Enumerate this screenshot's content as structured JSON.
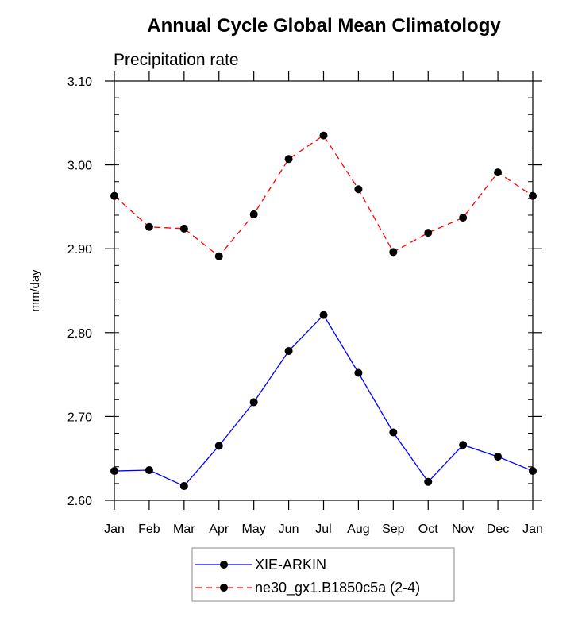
{
  "chart_data": {
    "type": "line",
    "title": "Annual Cycle Global Mean Climatology",
    "subtitle": "Precipitation rate",
    "xlabel": "",
    "ylabel": "mm/day",
    "categories": [
      "Jan",
      "Feb",
      "Mar",
      "Apr",
      "May",
      "Jun",
      "Jul",
      "Aug",
      "Sep",
      "Oct",
      "Nov",
      "Dec",
      "Jan"
    ],
    "ylim": [
      2.6,
      3.1
    ],
    "yticks": [
      2.6,
      2.7,
      2.8,
      2.9,
      3.0,
      3.1
    ],
    "ytick_labels": [
      "2.60",
      "2.70",
      "2.80",
      "2.90",
      "3.00",
      "3.10"
    ],
    "yminor_step": 0.02,
    "grid": false,
    "legend_position": "bottom-center",
    "series": [
      {
        "name": "XIE-ARKIN",
        "color": "#0000ff",
        "dash": "solid",
        "marker": "filled-circle",
        "values": [
          2.635,
          2.636,
          2.617,
          2.665,
          2.717,
          2.778,
          2.821,
          2.752,
          2.681,
          2.622,
          2.666,
          2.652,
          2.635
        ]
      },
      {
        "name": "ne30_gx1.B1850c5a (2-4)",
        "color": "#ff0000",
        "dash": "dashed",
        "marker": "filled-circle",
        "values": [
          2.963,
          2.926,
          2.924,
          2.891,
          2.941,
          3.007,
          3.035,
          2.971,
          2.896,
          2.919,
          2.937,
          2.991,
          2.963
        ]
      }
    ]
  }
}
